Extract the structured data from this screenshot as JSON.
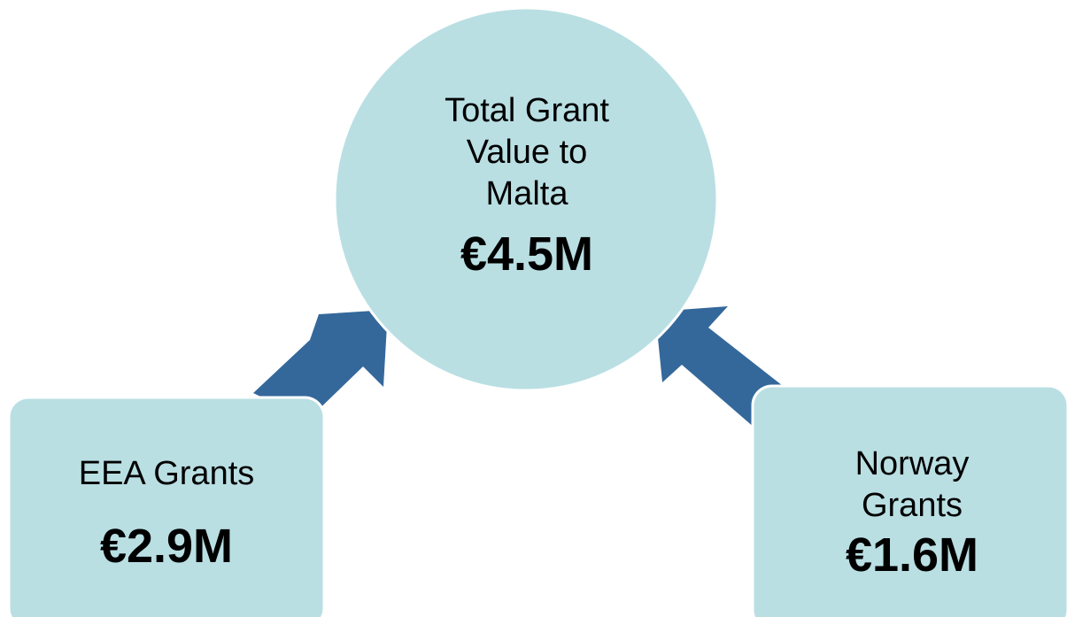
{
  "nodes": [
    {
      "label": [
        "Total Grant",
        "Value to",
        "Malta"
      ],
      "value": "€4.5M"
    },
    {
      "label": [
        "EEA Grants"
      ],
      "value": "€2.9M"
    },
    {
      "label": [
        "Norway",
        "Grants"
      ],
      "value": "€1.6M"
    }
  ]
}
